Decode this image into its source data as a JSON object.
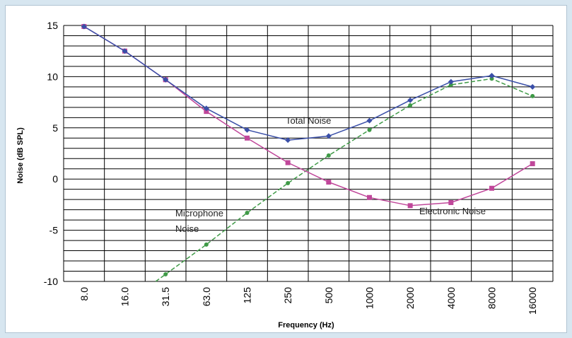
{
  "chart_data": {
    "type": "line",
    "xlabel": "Frequency (Hz)",
    "ylabel": "Noise (dB SPL)",
    "categories": [
      "8.0",
      "16.0",
      "31.5",
      "63.0",
      "125",
      "250",
      "500",
      "1000",
      "2000",
      "4000",
      "8000",
      "16000"
    ],
    "ylim": [
      -10,
      15
    ],
    "yticks": [
      15,
      10,
      5,
      0,
      -5,
      -10
    ],
    "grid": true,
    "series": [
      {
        "name": "Total Noise",
        "color": "#3a4fa8",
        "marker": "diamond",
        "values": [
          14.9,
          12.5,
          9.7,
          6.9,
          4.8,
          3.8,
          4.2,
          5.7,
          7.7,
          9.5,
          10.1,
          9.0
        ]
      },
      {
        "name": "Electronic Noise",
        "color": "#c0479a",
        "marker": "square",
        "values": [
          14.9,
          12.5,
          9.7,
          6.6,
          4.0,
          1.6,
          -0.3,
          -1.8,
          -2.6,
          -2.3,
          -0.9,
          1.5
        ]
      },
      {
        "name": "Microphone Noise",
        "color": "#3f9a47",
        "marker": "circle",
        "values": [
          null,
          null,
          -9.3,
          -6.4,
          -3.3,
          -0.4,
          2.3,
          4.8,
          7.2,
          9.2,
          9.8,
          8.1
        ]
      }
    ],
    "annotations": [
      {
        "text": "Total Noise",
        "series": "Total Noise"
      },
      {
        "text": "Electronic Noise",
        "series": "Electronic Noise"
      },
      {
        "text": "Microphone",
        "series": "Microphone Noise"
      },
      {
        "text": "Noise",
        "series": "Microphone Noise"
      }
    ]
  }
}
